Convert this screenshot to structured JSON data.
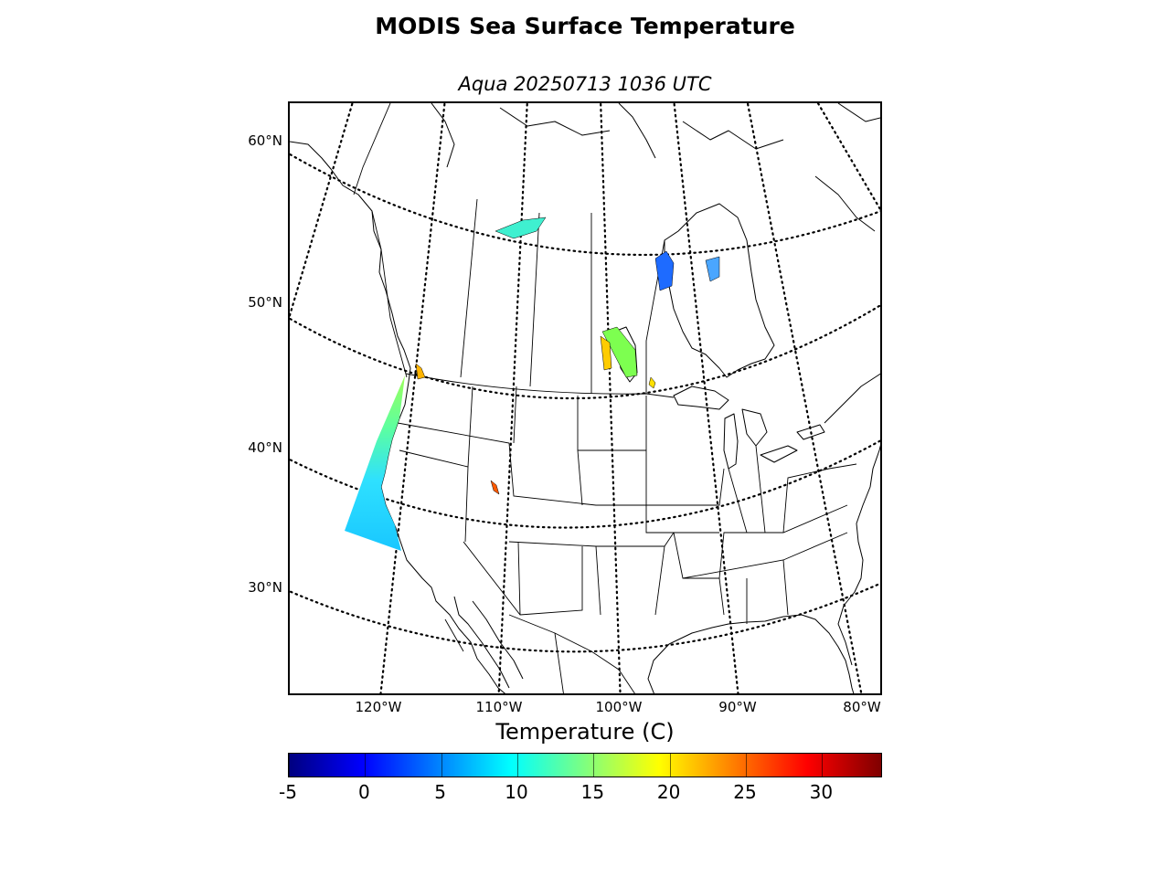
{
  "title": "MODIS Sea Surface Temperature",
  "subtitle": "Aqua 20250713 1036 UTC",
  "map": {
    "projection": "lambert-conformal",
    "lat_labels": [
      {
        "text": "60°N",
        "value": 60
      },
      {
        "text": "50°N",
        "value": 50
      },
      {
        "text": "40°N",
        "value": 40
      },
      {
        "text": "30°N",
        "value": 30
      }
    ],
    "lon_labels": [
      {
        "text": "120°W",
        "value": -120
      },
      {
        "text": "110°W",
        "value": -110
      },
      {
        "text": "100°W",
        "value": -100
      },
      {
        "text": "90°W",
        "value": -90
      },
      {
        "text": "80°W",
        "value": -80
      }
    ],
    "grid_style": "dotted",
    "coastline_color": "#000000"
  },
  "colorbar": {
    "label": "Temperature (C)",
    "min": -5,
    "max": 34,
    "ticks": [
      "-5",
      "0",
      "5",
      "10",
      "15",
      "20",
      "25",
      "30"
    ],
    "colormap": "jet",
    "colors": [
      "#00007f",
      "#0000ff",
      "#007fff",
      "#00ffff",
      "#7fff7f",
      "#ffff00",
      "#ff7f00",
      "#ff0000",
      "#7f0000"
    ]
  }
}
